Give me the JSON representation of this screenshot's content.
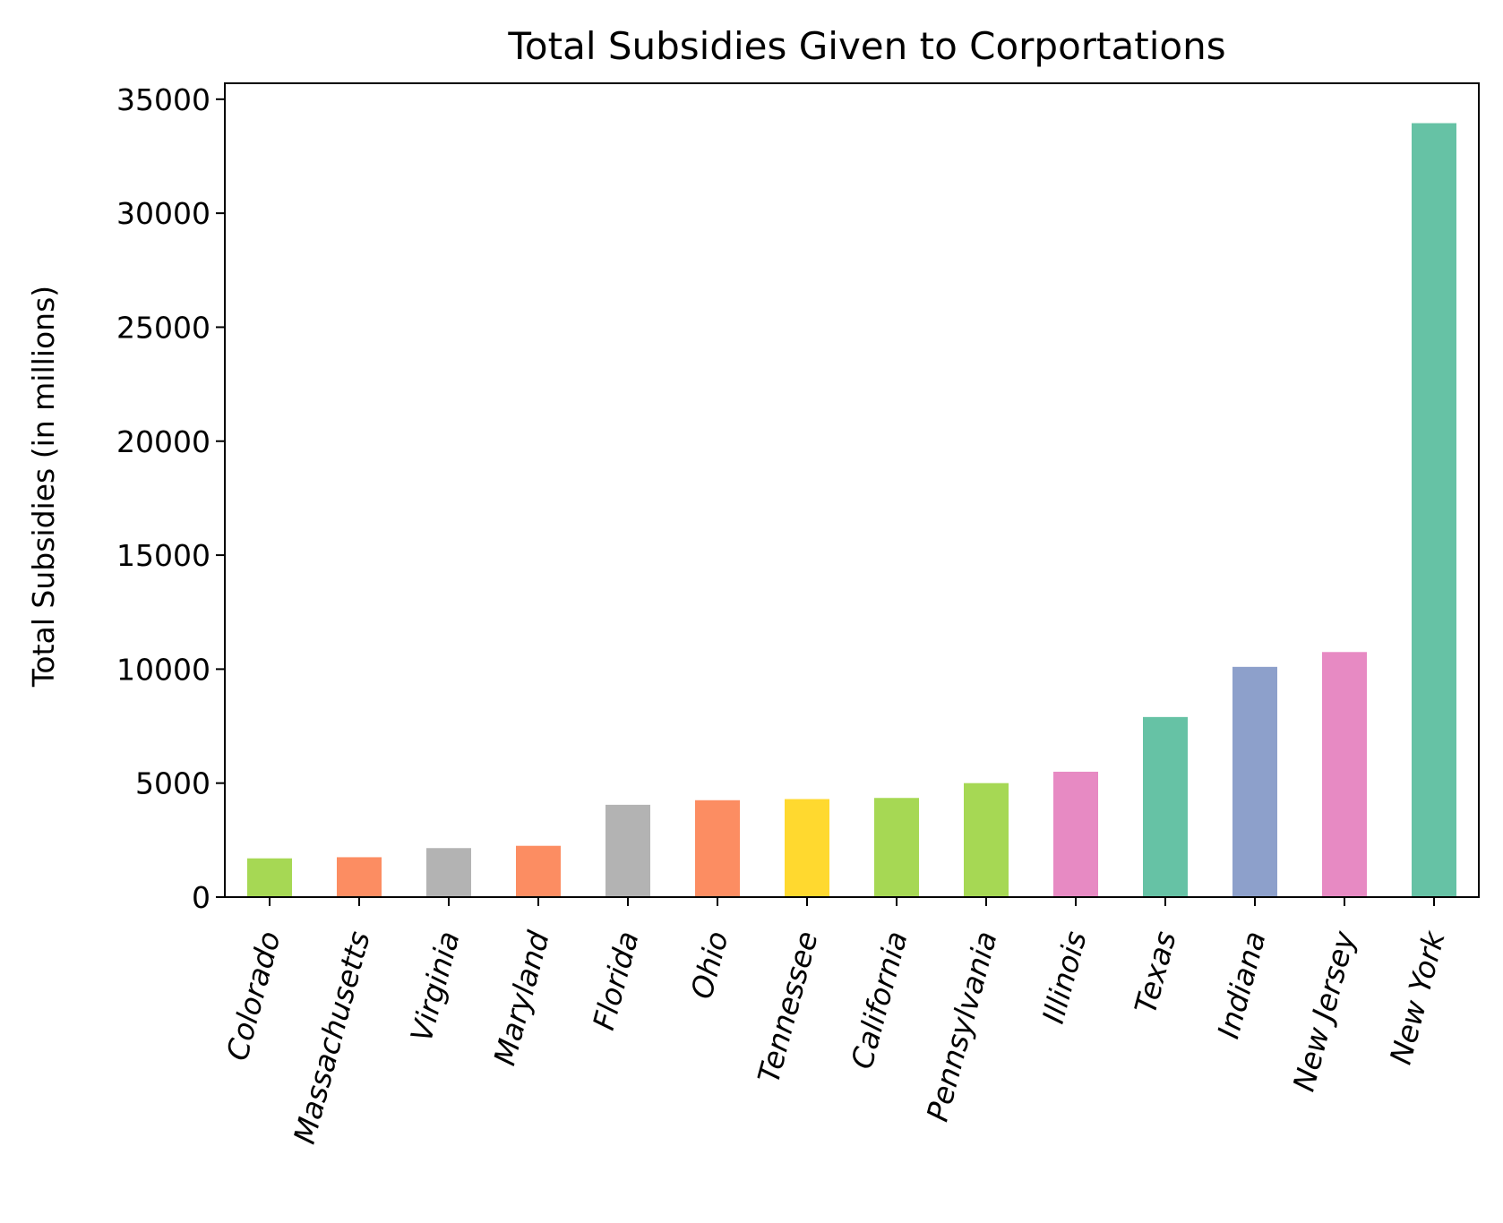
{
  "chart_data": {
    "type": "bar",
    "title": "Total Subsidies Given to Corportations",
    "xlabel": "",
    "ylabel": "Total Subsidies (in millions)",
    "ylim": [
      0,
      35700
    ],
    "yticks": [
      0,
      5000,
      10000,
      15000,
      20000,
      25000,
      30000,
      35000
    ],
    "grid": false,
    "categories": [
      "Colorado",
      "Massachusetts",
      "Virginia",
      "Maryland",
      "Florida",
      "Ohio",
      "Tennessee",
      "California",
      "Pennsylvania",
      "Illinois",
      "Texas",
      "Indiana",
      "New Jersey",
      "New York"
    ],
    "values": [
      1700,
      1750,
      2150,
      2250,
      4050,
      4250,
      4300,
      4350,
      5000,
      5500,
      7900,
      10100,
      10750,
      33950
    ],
    "colors": [
      "#a6d854",
      "#fc8d62",
      "#b3b3b3",
      "#fc8d62",
      "#b3b3b3",
      "#fc8d62",
      "#ffd92f",
      "#a6d854",
      "#a6d854",
      "#e78ac3",
      "#66c2a5",
      "#8da0cb",
      "#e78ac3",
      "#66c2a5"
    ]
  }
}
